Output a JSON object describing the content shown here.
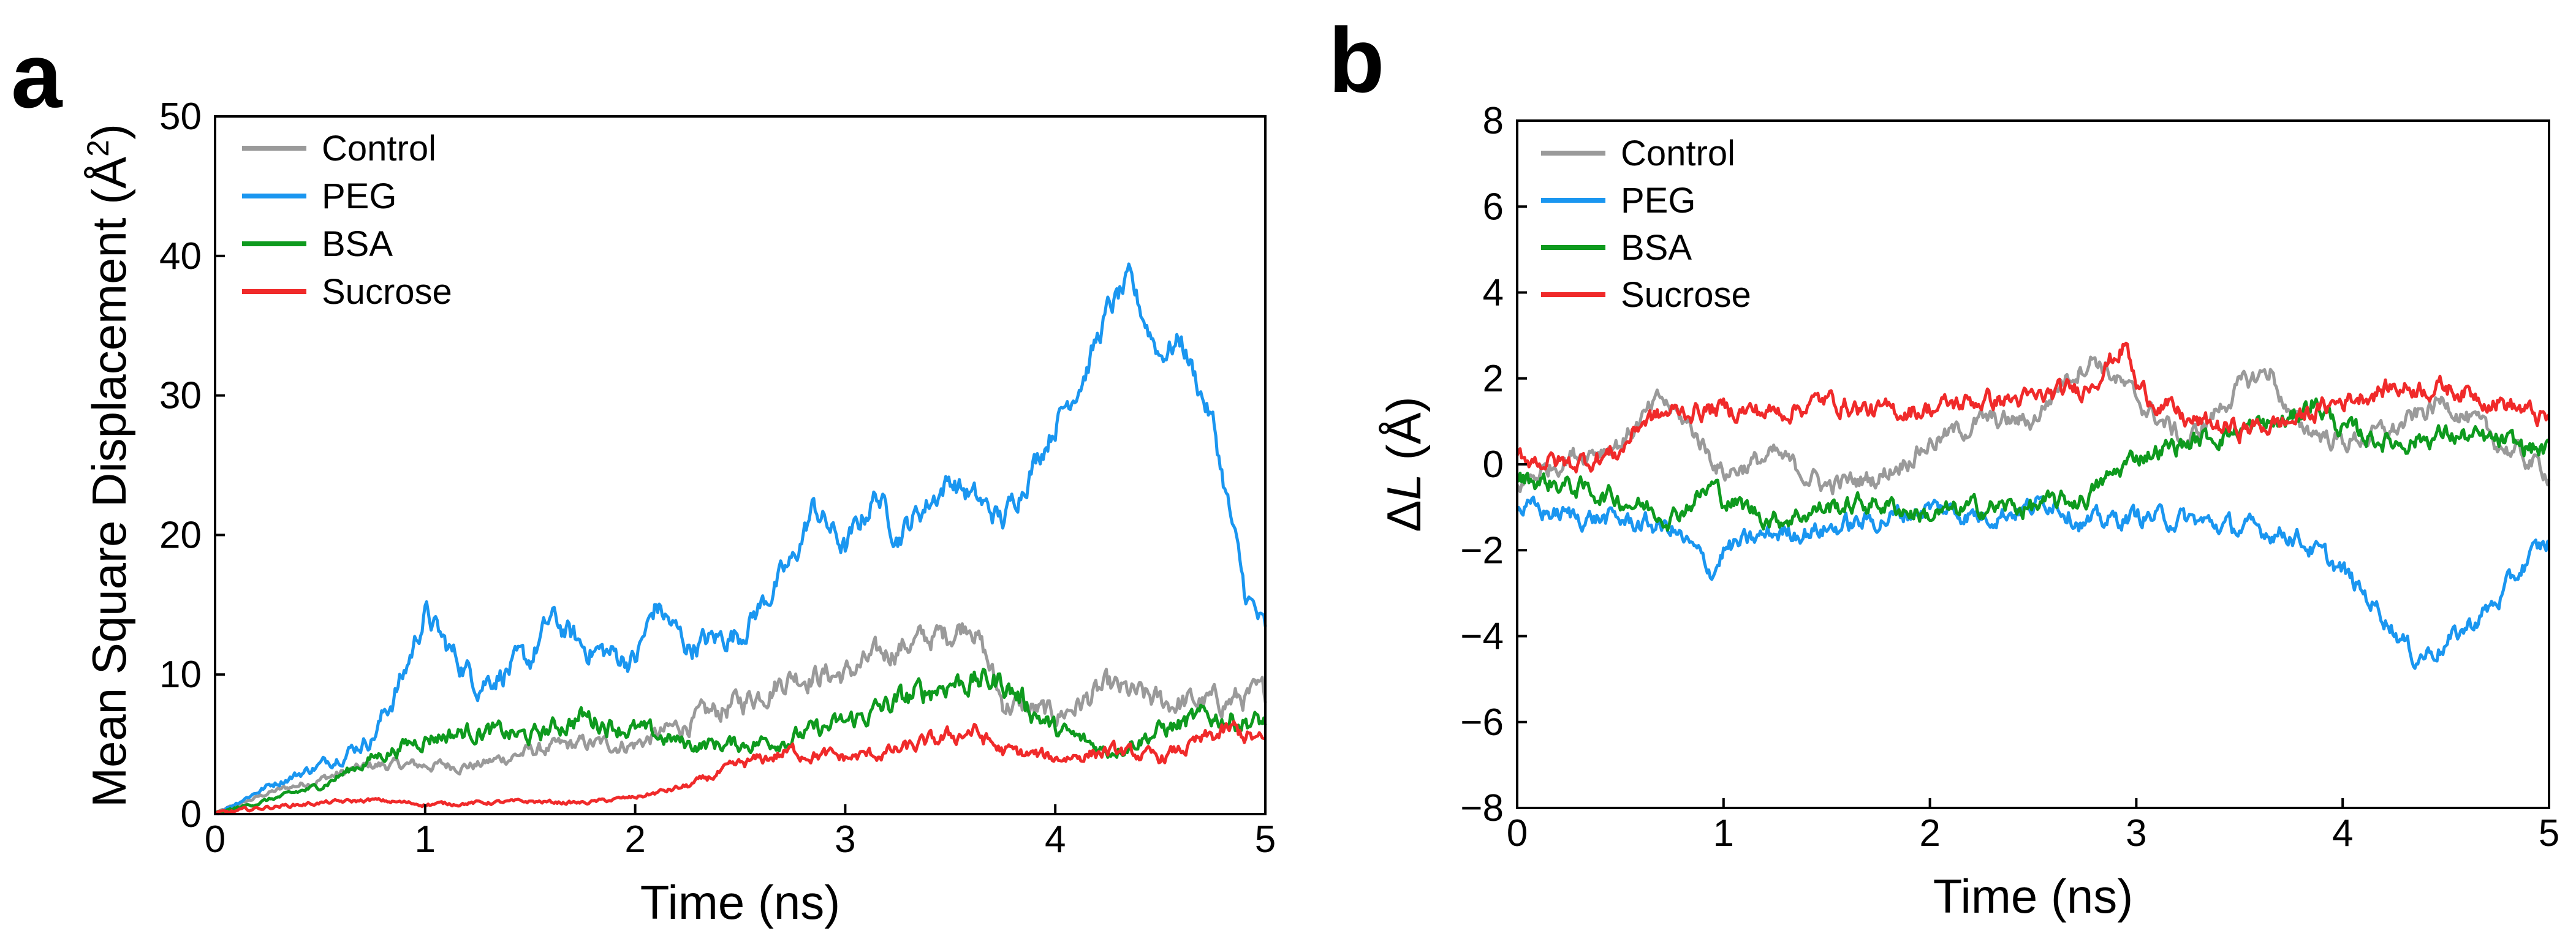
{
  "colors": {
    "control": "#9a9a9a",
    "peg": "#1a96f0",
    "bsa": "#0e9a1e",
    "sucrose": "#f02a2a"
  },
  "chart_data": [
    {
      "panel": "a",
      "type": "line",
      "xlabel": "Time (ns)",
      "ylabel": "Mean Square Displacement (Å²)",
      "ylabel_main": "Mean Square Displacement (Å",
      "ylabel_sup": "2",
      "ylabel_end": ")",
      "xlim": [
        0,
        5
      ],
      "ylim": [
        0,
        50
      ],
      "xticks": [
        0,
        1,
        2,
        3,
        4,
        5
      ],
      "yticks": [
        0,
        10,
        20,
        30,
        40,
        50
      ],
      "legend_position": "top-left",
      "series": [
        {
          "name": "Control",
          "key": "control",
          "x": [
            0,
            0.25,
            0.5,
            0.75,
            1.0,
            1.25,
            1.5,
            1.75,
            2.0,
            2.25,
            2.5,
            2.75,
            3.0,
            3.25,
            3.5,
            3.6,
            3.75,
            4.0,
            4.25,
            4.5,
            4.75,
            5.0
          ],
          "y": [
            0,
            1.5,
            2.5,
            3.5,
            3.5,
            3.5,
            4.5,
            5.0,
            5.0,
            6.5,
            8.0,
            10.0,
            10.0,
            12.0,
            13.0,
            14.0,
            8.0,
            7.0,
            9.0,
            8.0,
            8.0,
            8.5
          ]
        },
        {
          "name": "PEG",
          "key": "peg",
          "x": [
            0,
            0.25,
            0.5,
            0.75,
            0.9,
            1.0,
            1.1,
            1.25,
            1.5,
            1.6,
            1.75,
            2.0,
            2.1,
            2.25,
            2.5,
            2.75,
            2.85,
            3.0,
            3.15,
            3.25,
            3.5,
            3.75,
            4.0,
            4.15,
            4.25,
            4.35,
            4.5,
            4.6,
            4.75,
            4.9,
            5.0
          ],
          "y": [
            0,
            2.0,
            3.5,
            5.5,
            10.0,
            14.5,
            12.0,
            9.5,
            11.0,
            14.0,
            12.0,
            11.0,
            15.0,
            12.0,
            13.0,
            18.0,
            22.0,
            19.0,
            23.0,
            20.0,
            24.0,
            21.0,
            28.0,
            32.0,
            36.0,
            38.0,
            33.0,
            34.0,
            28.0,
            16.0,
            13.0
          ]
        },
        {
          "name": "BSA",
          "key": "bsa",
          "x": [
            0,
            0.25,
            0.5,
            0.75,
            1.0,
            1.25,
            1.5,
            1.75,
            2.0,
            2.25,
            2.5,
            2.75,
            3.0,
            3.25,
            3.5,
            3.75,
            4.0,
            4.25,
            4.5,
            4.75,
            5.0
          ],
          "y": [
            0,
            1.0,
            2.0,
            4.0,
            5.5,
            6.0,
            5.5,
            7.0,
            6.0,
            5.0,
            5.0,
            5.5,
            6.5,
            8.0,
            9.5,
            9.5,
            6.0,
            4.5,
            6.0,
            7.0,
            6.5
          ]
        },
        {
          "name": "Sucrose",
          "key": "sucrose",
          "x": [
            0,
            0.25,
            0.5,
            0.75,
            1.0,
            1.25,
            1.5,
            1.75,
            2.0,
            2.25,
            2.5,
            2.75,
            3.0,
            3.25,
            3.5,
            3.6,
            3.75,
            4.0,
            4.25,
            4.5,
            4.75,
            4.85,
            5.0
          ],
          "y": [
            0,
            0.5,
            0.8,
            1.0,
            0.7,
            0.8,
            0.9,
            0.8,
            1.2,
            2.0,
            3.5,
            4.5,
            4.0,
            4.5,
            5.5,
            6.0,
            4.5,
            4.0,
            4.5,
            4.0,
            5.5,
            6.0,
            5.0
          ]
        }
      ]
    },
    {
      "panel": "b",
      "type": "line",
      "xlabel": "Time (ns)",
      "ylabel": "ΔL (Å)",
      "ylabel_pre": "Δ",
      "ylabel_var": "L",
      "ylabel_post": " (Å)",
      "xlim": [
        0,
        5
      ],
      "ylim": [
        -8,
        8
      ],
      "xticks": [
        0,
        1,
        2,
        3,
        4,
        5
      ],
      "yticks": [
        -8,
        -6,
        -4,
        -2,
        0,
        2,
        4,
        6,
        8
      ],
      "legend_position": "top-left",
      "series": [
        {
          "name": "Control",
          "key": "control",
          "x": [
            0,
            0.25,
            0.5,
            0.7,
            0.85,
            1.0,
            1.25,
            1.5,
            1.75,
            2.0,
            2.25,
            2.5,
            2.65,
            2.8,
            3.0,
            3.25,
            3.5,
            3.65,
            3.75,
            4.0,
            4.25,
            4.5,
            4.75,
            5.0
          ],
          "y": [
            -0.5,
            0.2,
            0.5,
            1.5,
            0.8,
            -0.2,
            0.2,
            -0.5,
            -0.3,
            0.5,
            1.0,
            1.0,
            2.0,
            2.5,
            1.5,
            0.5,
            1.8,
            2.2,
            1.0,
            0.5,
            0.8,
            1.5,
            0.5,
            -0.2
          ]
        },
        {
          "name": "PEG",
          "key": "peg",
          "x": [
            0,
            0.25,
            0.5,
            0.75,
            0.95,
            1.0,
            1.25,
            1.5,
            1.75,
            2.0,
            2.25,
            2.5,
            2.6,
            2.75,
            3.0,
            3.25,
            3.5,
            3.75,
            4.0,
            4.2,
            4.35,
            4.5,
            4.75,
            4.9,
            5.0
          ],
          "y": [
            -1.0,
            -1.2,
            -1.3,
            -1.5,
            -2.5,
            -2.0,
            -1.6,
            -1.5,
            -1.3,
            -1.0,
            -1.2,
            -1.0,
            -0.8,
            -1.4,
            -1.2,
            -1.3,
            -1.5,
            -1.6,
            -2.5,
            -3.5,
            -4.5,
            -4.2,
            -3.2,
            -2.2,
            -1.8
          ]
        },
        {
          "name": "BSA",
          "key": "bsa",
          "x": [
            0,
            0.25,
            0.5,
            0.75,
            0.95,
            1.0,
            1.25,
            1.5,
            1.75,
            2.0,
            2.25,
            2.5,
            2.75,
            3.0,
            3.25,
            3.5,
            3.75,
            3.85,
            4.0,
            4.25,
            4.5,
            4.75,
            5.0
          ],
          "y": [
            -0.3,
            -0.5,
            -0.8,
            -1.2,
            -0.5,
            -0.8,
            -1.3,
            -1.0,
            -0.9,
            -1.2,
            -1.0,
            -1.0,
            -0.8,
            0.2,
            0.5,
            0.8,
            1.0,
            1.5,
            0.8,
            0.5,
            0.7,
            0.5,
            0.3
          ]
        },
        {
          "name": "Sucrose",
          "key": "sucrose",
          "x": [
            0,
            0.25,
            0.5,
            0.6,
            0.75,
            1.0,
            1.25,
            1.5,
            1.75,
            2.0,
            2.25,
            2.5,
            2.75,
            2.95,
            3.0,
            3.25,
            3.5,
            3.75,
            4.0,
            4.25,
            4.5,
            4.75,
            5.0
          ],
          "y": [
            0.2,
            0.0,
            0.3,
            1.0,
            1.2,
            1.3,
            1.2,
            1.5,
            1.2,
            1.3,
            1.5,
            1.5,
            1.8,
            2.8,
            1.8,
            1.0,
            0.8,
            1.0,
            1.5,
            1.8,
            1.8,
            1.5,
            1.0
          ]
        }
      ]
    }
  ]
}
